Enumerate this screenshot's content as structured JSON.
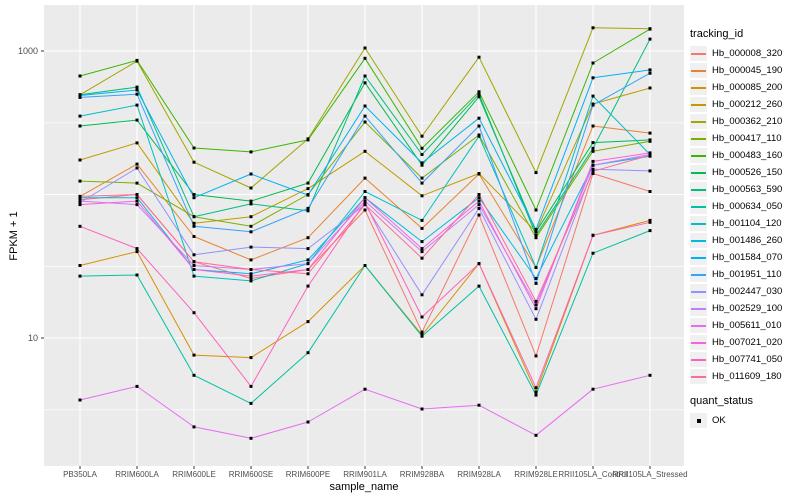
{
  "figure": {
    "y_axis_label": "FPKM + 1",
    "x_axis_label": "sample_name",
    "legend_title": "tracking_id",
    "quant_legend_title": "quant_status",
    "quant_legend_item": "OK"
  },
  "colors": {
    "panel_background": "#EBEBEB",
    "gridline": "#FFFFFF",
    "tick_text": "#4D4D4D",
    "tick_mark": "#333333",
    "point": "#000000",
    "legend_key_background": "#F0F0F0"
  },
  "chart_data": {
    "type": "line",
    "title": "",
    "xlabel": "sample_name",
    "ylabel": "FPKM + 1",
    "y_scale": "log10",
    "ylim": [
      1.8,
      1600
    ],
    "grid": true,
    "legend_position": "right",
    "point_marker": "black-square",
    "y_ticks": [
      {
        "value": 10,
        "label": "10"
      },
      {
        "value": 1000,
        "label": "1000"
      }
    ],
    "y_gridlines_major": [
      10,
      100,
      1000
    ],
    "y_gridlines_minor": [
      3.16,
      31.6,
      316
    ],
    "categories": [
      "PB350LA",
      "RRIM600LA",
      "RRIM600LE",
      "RRIM600SE",
      "RRIM600PE",
      "RRIM901LA",
      "RRIM928BA",
      "RRIM928LA",
      "RRIM928LE",
      "RRII105LA_Control",
      "RRII105LA_Stressed"
    ],
    "series": [
      {
        "name": "Hb_000008_320",
        "color": "#F8766D",
        "values": [
          92,
          100,
          34,
          26,
          30,
          78,
          11,
          72,
          7.5,
          140,
          105
        ]
      },
      {
        "name": "Hb_000045_190",
        "color": "#EA8331",
        "values": [
          97,
          163,
          51,
          35,
          50,
          130,
          58,
          139,
          31,
          300,
          268
        ]
      },
      {
        "name": "Hb_000085_200",
        "color": "#D89000",
        "values": [
          32,
          40,
          7.6,
          7.3,
          13,
          32,
          10.5,
          33,
          4.2,
          52,
          66
        ]
      },
      {
        "name": "Hb_000212_260",
        "color": "#C09B00",
        "values": [
          174,
          229,
          63,
          70,
          110,
          200,
          98,
          140,
          55,
          427,
          552
        ]
      },
      {
        "name": "Hb_000362_210",
        "color": "#A3A500",
        "values": [
          495,
          850,
          168,
          111,
          244,
          1050,
          255,
          905,
          142,
          1450,
          1430
        ]
      },
      {
        "name": "Hb_000417_110",
        "color": "#7CAE00",
        "values": [
          124,
          120,
          70,
          60,
          100,
          320,
          130,
          260,
          50,
          200,
          235
        ]
      },
      {
        "name": "Hb_000483_160",
        "color": "#39B600",
        "values": [
          670,
          860,
          211,
          198,
          240,
          890,
          210,
          520,
          78,
          825,
          1420
        ]
      },
      {
        "name": "Hb_000526_150",
        "color": "#00BB4E",
        "values": [
          300,
          330,
          100,
          90,
          120,
          600,
          160,
          480,
          55,
          230,
          240
        ]
      },
      {
        "name": "Hb_000563_590",
        "color": "#00BF7D",
        "values": [
          495,
          560,
          70,
          86,
          77,
          670,
          190,
          500,
          52,
          210,
          1210
        ]
      },
      {
        "name": "Hb_000634_050",
        "color": "#00C1A3",
        "values": [
          27,
          27.5,
          5.5,
          3.5,
          7.9,
          32,
          10.3,
          23,
          4,
          39,
          56
        ]
      },
      {
        "name": "Hb_001104_120",
        "color": "#00BFC4",
        "values": [
          352,
          420,
          27,
          25,
          33,
          105,
          66,
          255,
          31,
          485,
          190
        ]
      },
      {
        "name": "Hb_001486_260",
        "color": "#00BAE0",
        "values": [
          95,
          95,
          30,
          28,
          35,
          95,
          47,
          95,
          26,
          160,
          185
        ]
      },
      {
        "name": "Hb_001584_070",
        "color": "#00B0F6",
        "values": [
          490,
          535,
          95,
          139,
          99,
          414,
          166,
          340,
          57,
          650,
          738
        ]
      },
      {
        "name": "Hb_001951_110",
        "color": "#35A2FF",
        "values": [
          475,
          500,
          60,
          55,
          80,
          352,
          120,
          300,
          24,
          420,
          700
        ]
      },
      {
        "name": "Hb_002447_030",
        "color": "#9590FF",
        "values": [
          88,
          153,
          38,
          43,
          42,
          85,
          20,
          80,
          13.5,
          150,
          146
        ]
      },
      {
        "name": "Hb_002529_100",
        "color": "#C77CFF",
        "values": [
          90,
          85,
          32,
          30,
          33,
          90,
          40,
          85,
          17,
          160,
          190
        ]
      },
      {
        "name": "Hb_005611_010",
        "color": "#E76BF3",
        "values": [
          3.7,
          4.6,
          2.4,
          2,
          2.6,
          4.4,
          3.2,
          3.4,
          2.1,
          4.4,
          5.5
        ]
      },
      {
        "name": "Hb_007021_020",
        "color": "#FA62DB",
        "values": [
          85,
          90,
          30,
          27,
          30,
          95,
          42,
          90,
          16,
          170,
          195
        ]
      },
      {
        "name": "Hb_007741_050",
        "color": "#FF62BC",
        "values": [
          60,
          42,
          15,
          4.6,
          23,
          88,
          14,
          33,
          4.5,
          52,
          64
        ]
      },
      {
        "name": "Hb_011609_180",
        "color": "#FF6A98",
        "values": [
          97,
          100,
          34,
          30,
          28,
          85,
          36,
          100,
          18,
          145,
          188
        ]
      }
    ]
  }
}
